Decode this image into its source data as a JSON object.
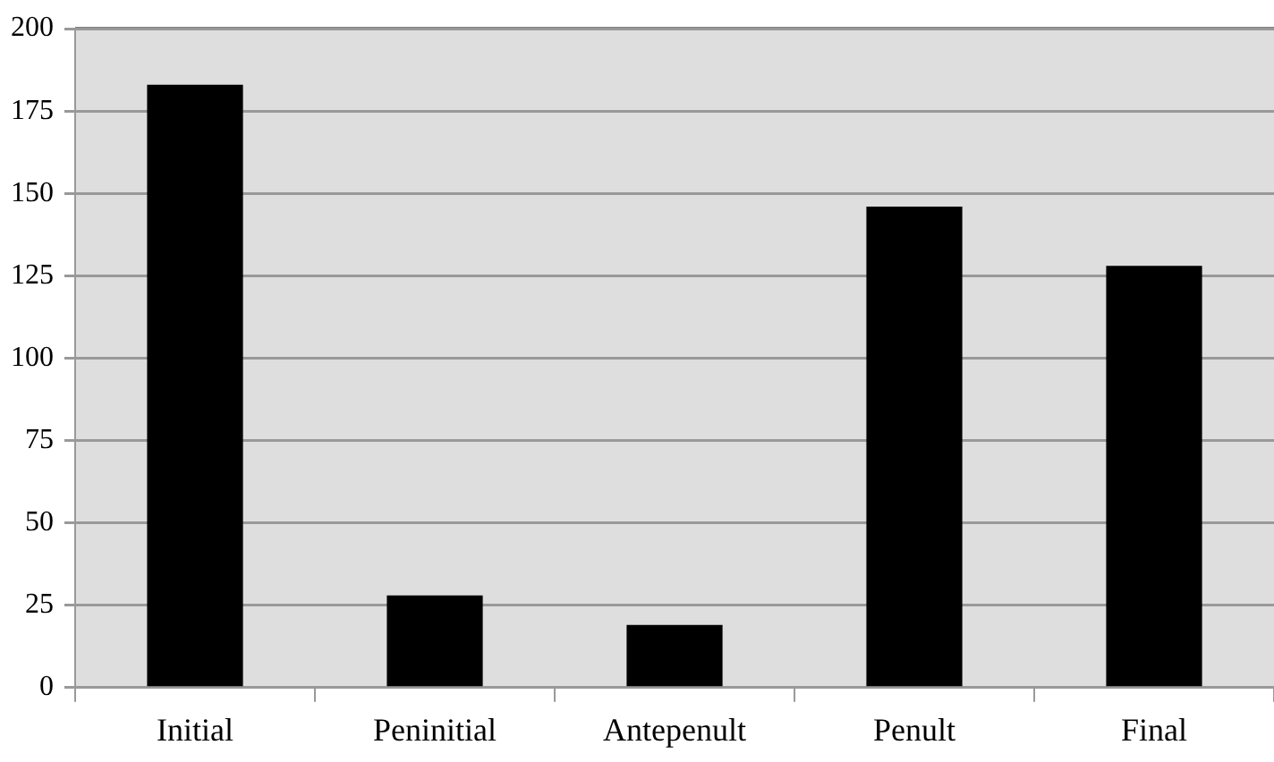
{
  "chart_data": {
    "type": "bar",
    "categories": [
      "Initial",
      "Peninitial",
      "Antepenult",
      "Penult",
      "Final"
    ],
    "values": [
      183,
      28,
      19,
      146,
      128
    ],
    "color": "#000000",
    "ylim": [
      0,
      200
    ],
    "yticks": [
      0,
      25,
      50,
      75,
      100,
      125,
      150,
      175,
      200
    ],
    "grid": "y",
    "legend": false
  }
}
